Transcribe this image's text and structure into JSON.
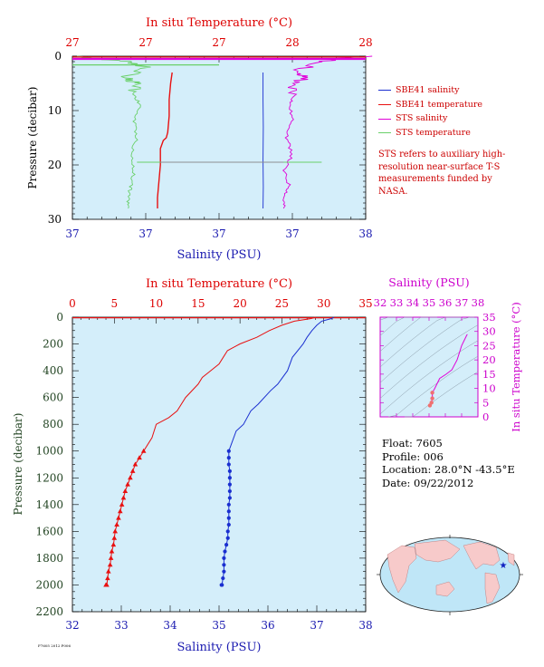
{
  "colors": {
    "plot_bg": "#d4eefa",
    "salinity": "#1a2fd0",
    "temperature": "#e81010",
    "sts_salinity": "#e000d8",
    "sts_temperature": "#6ad06a",
    "temp_axis": "#dd0000",
    "sal_axis": "#1a1ab0",
    "pressure_axis": "#224422",
    "ts_axis": "#cc00cc"
  },
  "top_panel": {
    "temp_axis_title": "In situ Temperature (°C)",
    "temp_tick_labels": [
      "27",
      "27",
      "27",
      "28",
      "28"
    ],
    "sal_axis_title": "Salinity (PSU)",
    "sal_tick_labels": [
      "37",
      "37",
      "37",
      "37",
      "38"
    ],
    "pressure_axis_title": "Pressure (decibar)",
    "pressure_tick_labels": [
      "0",
      "10",
      "20",
      "30"
    ]
  },
  "legend": {
    "entries": [
      {
        "label": "SBE41 salinity",
        "color": "#1a2fd0"
      },
      {
        "label": "SBE41 temperature",
        "color": "#e81010"
      },
      {
        "label": "STS salinity",
        "color": "#e000d8"
      },
      {
        "label": "STS temperature",
        "color": "#6ad06a"
      }
    ],
    "note": "STS refers to auxiliary high-resolution near-surface T-S measurements funded by NASA."
  },
  "main_panel": {
    "temp_axis_title": "In situ Temperature (°C)",
    "temp_tick_labels": [
      "0",
      "5",
      "10",
      "15",
      "20",
      "25",
      "30",
      "35"
    ],
    "sal_axis_title": "Salinity (PSU)",
    "sal_tick_labels": [
      "32",
      "33",
      "34",
      "35",
      "36",
      "37",
      "38"
    ],
    "pressure_axis_title": "Pressure (decibar)",
    "pressure_tick_labels": [
      "0",
      "200",
      "400",
      "600",
      "800",
      "1000",
      "1200",
      "1400",
      "1600",
      "1800",
      "2000",
      "2200"
    ]
  },
  "ts_panel": {
    "sal_axis_title": "Salinity (PSU)",
    "sal_tick_labels": [
      "32",
      "33",
      "34",
      "35",
      "36",
      "37",
      "38"
    ],
    "temp_axis_title": "In situ Temperature (°C)",
    "temp_tick_labels": [
      "0",
      "5",
      "10",
      "15",
      "20",
      "25",
      "30",
      "35"
    ]
  },
  "float_info": {
    "float": "Float:  7605",
    "profile": "Profile:  006",
    "location": "Location:  28.0°N  -43.5°E",
    "date": "Date:  09/22/2012"
  },
  "footer_tiny": "F7605 2012 P006",
  "chart_data": [
    {
      "type": "line",
      "panel": "main profile",
      "y_axis": "Pressure (decibar)",
      "ylim": [
        0,
        2200
      ],
      "y_inverted": true,
      "series": [
        {
          "name": "Salinity (PSU)",
          "xlim": [
            32,
            38
          ],
          "x": [
            37.35,
            37.3,
            37.1,
            37.0,
            36.9,
            36.8,
            36.72,
            36.5,
            36.4,
            36.2,
            36.05,
            35.8,
            35.65,
            35.5,
            35.35,
            35.25,
            35.2
          ],
          "y": [
            0,
            10,
            30,
            60,
            100,
            150,
            200,
            300,
            400,
            500,
            550,
            650,
            700,
            800,
            850,
            950,
            1000
          ]
        },
        {
          "name": "Salinity bottle samples (PSU)",
          "xlim": [
            32,
            38
          ],
          "x": [
            35.2,
            35.2,
            35.2,
            35.22,
            35.22,
            35.22,
            35.22,
            35.22,
            35.2,
            35.2,
            35.2,
            35.2,
            35.18,
            35.18,
            35.15,
            35.12,
            35.1,
            35.1,
            35.1,
            35.08,
            35.06,
            35.05
          ],
          "y": [
            1000,
            1050,
            1100,
            1150,
            1200,
            1250,
            1300,
            1350,
            1400,
            1450,
            1500,
            1550,
            1600,
            1650,
            1700,
            1750,
            1800,
            1850,
            1900,
            1950,
            2000,
            2000
          ]
        },
        {
          "name": "In situ Temperature (°C)",
          "xlim": [
            0,
            35
          ],
          "x": [
            29.0,
            28.5,
            26.5,
            25.0,
            23.5,
            22.0,
            20.0,
            18.5,
            18.0,
            17.5,
            16.5,
            15.5,
            15.0,
            13.5,
            12.5,
            11.5,
            10.0,
            9.5,
            8.5
          ],
          "y": [
            0,
            10,
            30,
            60,
            100,
            150,
            200,
            250,
            300,
            350,
            400,
            450,
            500,
            600,
            700,
            750,
            800,
            900,
            1000
          ]
        },
        {
          "name": "Temperature bottle samples (°C)",
          "xlim": [
            0,
            35
          ],
          "x": [
            8.5,
            8.0,
            7.5,
            7.2,
            6.9,
            6.6,
            6.3,
            6.1,
            5.9,
            5.7,
            5.5,
            5.3,
            5.1,
            5.0,
            4.9,
            4.7,
            4.6,
            4.5,
            4.3,
            4.2,
            4.1,
            4.0
          ],
          "y": [
            1000,
            1050,
            1100,
            1150,
            1200,
            1250,
            1300,
            1350,
            1400,
            1450,
            1500,
            1550,
            1600,
            1650,
            1700,
            1750,
            1800,
            1850,
            1900,
            1950,
            2000,
            2000
          ]
        }
      ]
    },
    {
      "type": "line",
      "panel": "top near-surface",
      "y_axis": "Pressure (decibar)",
      "ylim": [
        0,
        30
      ],
      "y_inverted": true,
      "x_fraction_note": "x values as fraction of axis width (axis tick labels are rounded duplicates)",
      "series": [
        {
          "name": "SBE41 salinity",
          "x": [
            0.65,
            0.65,
            0.651,
            0.65,
            0.651,
            0.65
          ],
          "y": [
            3,
            8,
            13,
            19,
            24,
            28
          ]
        },
        {
          "name": "SBE41 temperature",
          "x": [
            0.34,
            0.335,
            0.33,
            0.33,
            0.325,
            0.32,
            0.31,
            0.3,
            0.3,
            0.295,
            0.29,
            0.29
          ],
          "y": [
            3,
            5,
            8,
            11,
            14,
            15,
            15.5,
            17,
            20,
            23,
            26,
            28
          ]
        },
        {
          "name": "STS salinity",
          "x": [
            1.0,
            0.9,
            0.85,
            0.75,
            0.8,
            0.74,
            0.76,
            0.74,
            0.75,
            0.73,
            0.75,
            0.72,
            0.74,
            0.72,
            0.72
          ],
          "y": [
            0,
            0.5,
            1,
            3,
            4,
            5,
            7,
            9,
            12,
            15,
            18,
            21,
            24,
            26,
            28
          ]
        },
        {
          "name": "STS temperature",
          "x": [
            0.0,
            0.1,
            0.2,
            0.25,
            0.18,
            0.22,
            0.21,
            0.23,
            0.21,
            0.22,
            0.2,
            0.21,
            0.2,
            0.19,
            0.19
          ],
          "y": [
            0,
            0.5,
            1,
            2,
            4,
            5,
            7,
            9,
            12,
            15,
            18,
            21,
            24,
            26,
            28
          ]
        }
      ]
    },
    {
      "type": "scatter",
      "panel": "T-S diagram",
      "xlabel": "Salinity (PSU)",
      "ylabel": "In situ Temperature (°C)",
      "xlim": [
        32,
        38
      ],
      "ylim": [
        0,
        35
      ],
      "series": [
        {
          "name": "T-S profile",
          "x": [
            37.35,
            37.3,
            37.0,
            36.72,
            36.4,
            36.05,
            35.65,
            35.35,
            35.2,
            35.2,
            35.15,
            35.05
          ],
          "y": [
            29.0,
            28.5,
            25.0,
            20.0,
            16.5,
            15.0,
            13.5,
            10.0,
            8.5,
            6.5,
            5.0,
            4.0
          ]
        }
      ]
    }
  ]
}
